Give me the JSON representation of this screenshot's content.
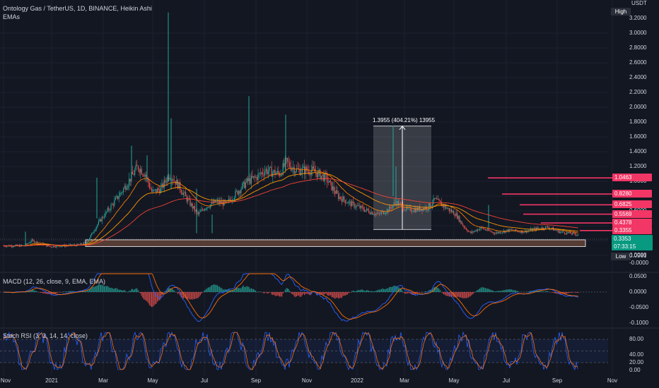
{
  "header": {
    "title": "Ontology Gas / TetherUS, 1D, BINANCE, Heikin Ashi",
    "indicator": "EMAs",
    "unit": "USDT"
  },
  "main_axis": {
    "ticks": [
      "3.2000",
      "3.0000",
      "2.8000",
      "2.6000",
      "2.4000",
      "2.2000",
      "2.0000",
      "1.8000",
      "1.6000",
      "1.4000",
      "1.2000",
      "1.0000",
      "0.8000",
      "0.6000",
      "0.4000",
      "0.2000",
      "0.0000",
      "-0.0000"
    ],
    "high_label": "High",
    "low_label": "Low",
    "low_value": "0.0981",
    "last_price": "0.3353",
    "countdown": "07:33:15"
  },
  "levels": [
    "1.0463",
    "0.8280",
    "0.6825",
    "0.5569",
    "0.4378",
    "0.3355"
  ],
  "measure": {
    "label": "1.3955 (404.21%) 13955"
  },
  "macd": {
    "label": "MACD (12, 26, close, 9, EMA, EMA)",
    "ticks": [
      "0.0500",
      "0.0000",
      "-0.0500",
      "-0.1000"
    ]
  },
  "stoch": {
    "label": "Stoch RSI (3, 3, 14, 14, close)",
    "ticks": [
      "80.00",
      "40.00",
      "20.00",
      "0.00"
    ]
  },
  "time_axis": [
    "Nov",
    "2021",
    "Mar",
    "May",
    "Jul",
    "Sep",
    "Nov",
    "2022",
    "Mar",
    "May",
    "Jul",
    "Sep",
    "Nov"
  ],
  "colors": {
    "background": "#131722",
    "up": "#26a69a",
    "down": "#ef5350",
    "level_line": "#f23665",
    "ema_fast": "#f57c00",
    "ema_slow": "#f44336",
    "macd_line": "#2962ff",
    "signal_line": "#ff6d00",
    "stoch_k": "#2962ff",
    "stoch_d": "#ff6d00",
    "support_box": "#5d4037"
  },
  "chart_data": {
    "type": "candlestick",
    "series": [
      {
        "name": "ONG/USDT",
        "x": [
          "2020-11",
          "2021-01",
          "2021-03",
          "2021-05",
          "2021-07",
          "2021-09",
          "2021-11",
          "2022-01",
          "2022-03",
          "2022-05",
          "2022-07",
          "2022-09"
        ],
        "values": [
          0.12,
          0.15,
          0.6,
          1.4,
          0.65,
          1.25,
          1.1,
          0.7,
          0.6,
          0.42,
          0.38,
          0.34
        ]
      }
    ],
    "ylim": [
      0.0,
      3.3
    ],
    "annotations": {
      "horizontal_levels": [
        1.0463,
        0.828,
        0.6825,
        0.5569,
        0.4378,
        0.3355
      ],
      "measure_range": [
        0.35,
        1.745
      ],
      "support_zone": [
        0.12,
        0.21
      ]
    }
  }
}
